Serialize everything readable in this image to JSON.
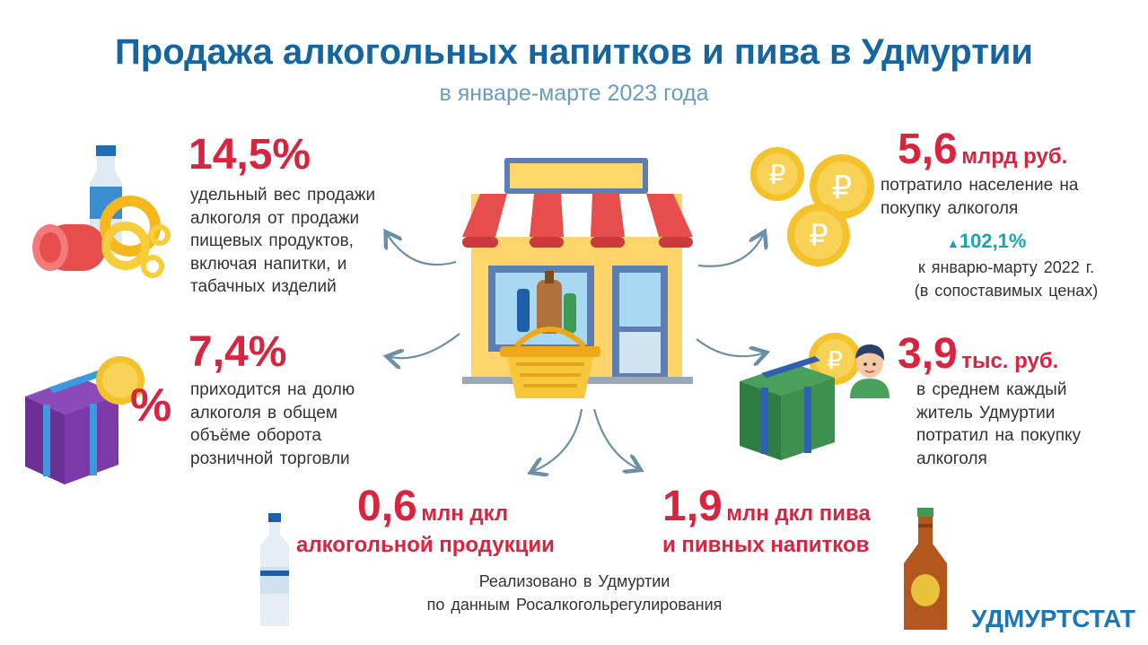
{
  "header": {
    "title": "Продажа алкогольных напитков и пива в Удмуртии",
    "subtitle": "в январе-марте 2023 года"
  },
  "stats": {
    "share_food": {
      "value": "14,5%",
      "lines": [
        "удельный вес продажи",
        "алкоголя от продажи",
        "пищевых продуктов,",
        "включая напитки, и",
        "табачных изделий"
      ]
    },
    "share_turnover": {
      "value": "7,4%",
      "lines": [
        "приходится на долю",
        "алкоголя в общем",
        "объёме оборота",
        "розничной торговли"
      ]
    },
    "spent_total": {
      "value": "5,6",
      "unit": "млрд руб.",
      "lines": [
        "потратило население на",
        "покупку алкоголя"
      ],
      "growth": "102,1%",
      "growth_lines": [
        "к январю-марту 2022 г.",
        "(в сопоставимых ценах)"
      ]
    },
    "per_capita": {
      "value": "3,9",
      "unit": "тыс. руб.",
      "lines": [
        "в среднем каждый",
        "житель Удмуртии",
        "потратил на покупку",
        "алкоголя"
      ]
    },
    "alcohol_volume": {
      "value": "0,6",
      "unit": "млн дкл",
      "line2": "алкогольной продукции"
    },
    "beer_volume": {
      "value": "1,9",
      "unit": "млн дкл пива",
      "line2": "и пивных напитков"
    }
  },
  "footer": {
    "note_lines": [
      "Реализовано в Удмуртии",
      "по данным Росалкогольрегулирования"
    ],
    "brand": "УДМУРТСТАТ"
  },
  "icons": [
    "water-bottle-icon",
    "sausage-icon",
    "bagels-icon",
    "gift-box-icon",
    "coin-icon",
    "percent-icon",
    "store-icon",
    "basket-icon",
    "coins-icon",
    "person-icon",
    "vodka-bottle-icon",
    "beer-bottle-icon",
    "arrow-icon"
  ],
  "colors": {
    "title": "#1565a0",
    "accent_red": "#d8243f",
    "teal": "#1aa3b4",
    "brand": "#1d77b5"
  }
}
